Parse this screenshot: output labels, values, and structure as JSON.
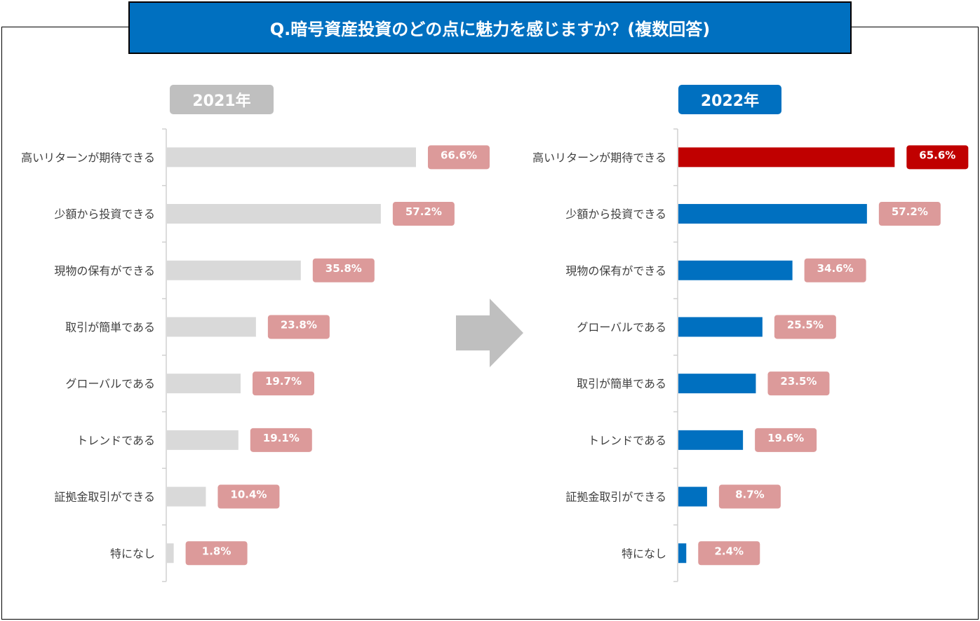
{
  "title": "Q.暗号資産投資のどの点に魅力を感じますか？(複数回答)",
  "colors": {
    "title_bg": "#0070c0",
    "bar_2021": "#d9d9d9",
    "bar_2022": "#0070c0",
    "bar_highlight": "#c00000",
    "label_bg": "#dc9a9a",
    "label_highlight_bg": "#c00000",
    "badge_2021": "#bfbfbf",
    "badge_2022": "#0070c0",
    "arrow": "#bfbfbf"
  },
  "icons": {
    "arrow": "right-arrow-icon"
  },
  "chart_data": [
    {
      "type": "bar",
      "orientation": "horizontal",
      "title": "2021年",
      "categories": [
        "高いリターンが期待できる",
        "少額から投資できる",
        "現物の保有ができる",
        "取引が簡単である",
        "グローバルである",
        "トレンドである",
        "証拠金取引ができる",
        "特になし"
      ],
      "values": [
        66.6,
        57.2,
        35.8,
        23.8,
        19.7,
        19.1,
        10.4,
        1.8
      ],
      "value_labels": [
        "66.6%",
        "57.2%",
        "35.8%",
        "23.8%",
        "19.7%",
        "19.1%",
        "10.4%",
        "1.8%"
      ],
      "unit": "%",
      "xlim": [
        0,
        100
      ],
      "highlight_index": null
    },
    {
      "type": "bar",
      "orientation": "horizontal",
      "title": "2022年",
      "categories": [
        "高いリターンが期待できる",
        "少額から投資できる",
        "現物の保有ができる",
        "グローバルである",
        "取引が簡単である",
        "トレンドである",
        "証拠金取引ができる",
        "特になし"
      ],
      "values": [
        65.6,
        57.2,
        34.6,
        25.5,
        23.5,
        19.6,
        8.7,
        2.4
      ],
      "value_labels": [
        "65.6%",
        "57.2%",
        "34.6%",
        "25.5%",
        "23.5%",
        "19.6%",
        "8.7%",
        "2.4%"
      ],
      "unit": "%",
      "xlim": [
        0,
        100
      ],
      "highlight_index": 0
    }
  ]
}
